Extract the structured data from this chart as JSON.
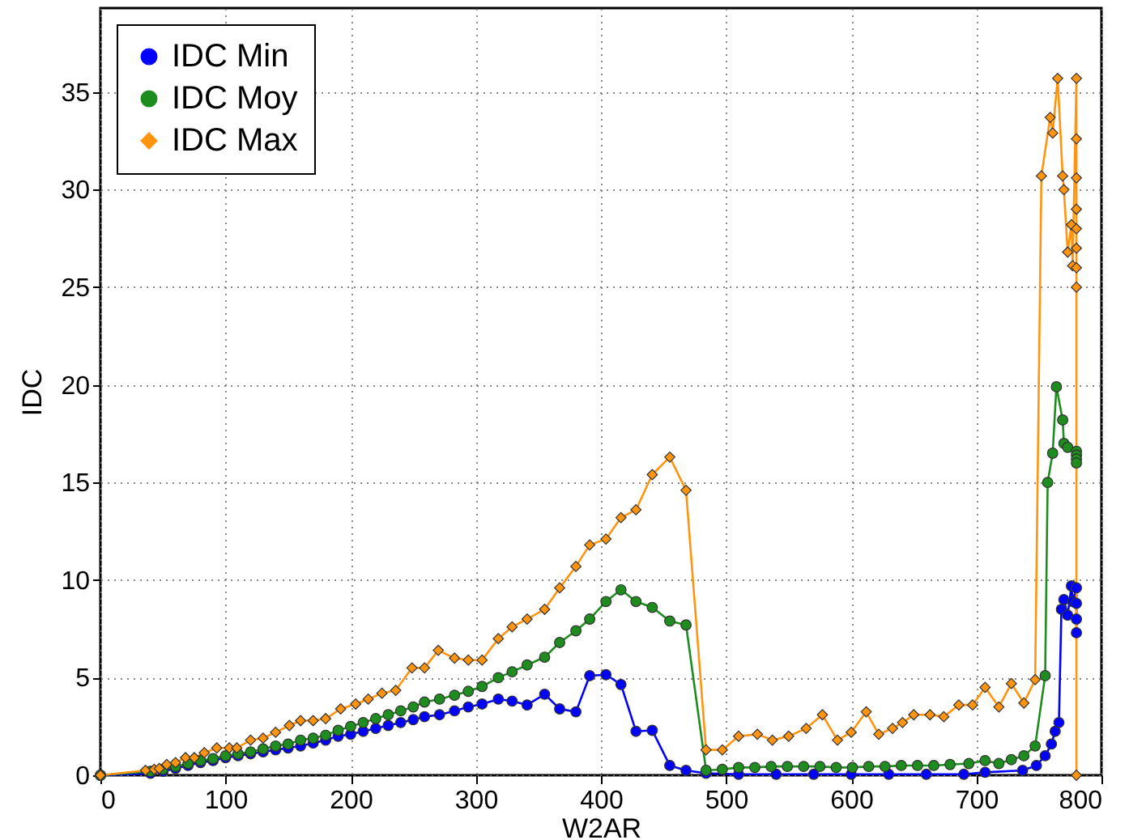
{
  "chart_data": {
    "type": "line",
    "xlabel": "W2AR",
    "ylabel": "IDC",
    "xlim": [
      0,
      800
    ],
    "xticks": [
      0,
      100,
      200,
      300,
      400,
      500,
      600,
      700,
      800
    ],
    "ylim": [
      0,
      39.3
    ],
    "yticks": [
      0,
      5,
      10,
      15,
      20,
      25,
      30,
      35
    ],
    "grid": true,
    "legend": "top left",
    "line_style": "solid",
    "series": [
      {
        "name": "IDC Min",
        "color": "#0000ff",
        "marker": "circle",
        "x": [
          0,
          40,
          50,
          60,
          70,
          80,
          90,
          100,
          110,
          120,
          130,
          140,
          150,
          160,
          170,
          180,
          190,
          200,
          210,
          220,
          230,
          240,
          250,
          259,
          271,
          283,
          294,
          305,
          318,
          329,
          341,
          355,
          367,
          380,
          391,
          404,
          416,
          428,
          441,
          455,
          468,
          484,
          510,
          540,
          570,
          600,
          630,
          660,
          690,
          707,
          737,
          748,
          755,
          760,
          763,
          766,
          768,
          770,
          773,
          776,
          777,
          780,
          780,
          780,
          780
        ],
        "values": [
          0,
          0.1,
          0.2,
          0.35,
          0.5,
          0.65,
          0.75,
          0.9,
          1.0,
          1.1,
          1.2,
          1.3,
          1.4,
          1.5,
          1.65,
          1.8,
          2.0,
          2.1,
          2.25,
          2.4,
          2.55,
          2.7,
          2.85,
          3.0,
          3.1,
          3.3,
          3.5,
          3.65,
          3.9,
          3.8,
          3.6,
          4.15,
          3.4,
          3.25,
          5.1,
          5.15,
          4.65,
          2.25,
          2.3,
          0.5,
          0.25,
          0.1,
          0.05,
          0.05,
          0.05,
          0.05,
          0.05,
          0.05,
          0.05,
          0.15,
          0.25,
          0.5,
          1.0,
          1.6,
          2.25,
          2.7,
          8.5,
          9.0,
          8.2,
          9.7,
          8.9,
          9.6,
          8.8,
          8.0,
          7.3
        ]
      },
      {
        "name": "IDC Moy",
        "color": "#1e8c1e",
        "marker": "circle",
        "x": [
          0,
          40,
          50,
          60,
          70,
          80,
          90,
          100,
          110,
          120,
          130,
          140,
          150,
          160,
          170,
          180,
          190,
          200,
          210,
          220,
          230,
          240,
          250,
          259,
          271,
          283,
          294,
          305,
          318,
          329,
          341,
          355,
          367,
          380,
          391,
          404,
          416,
          428,
          441,
          455,
          468,
          484,
          497,
          510,
          523,
          536,
          549,
          562,
          575,
          588,
          601,
          614,
          627,
          640,
          653,
          666,
          679,
          694,
          707,
          718,
          728,
          738,
          747,
          755,
          757,
          761,
          764,
          769,
          770,
          773,
          780,
          780,
          780,
          780
        ],
        "values": [
          0,
          0.2,
          0.3,
          0.45,
          0.6,
          0.75,
          0.85,
          1.0,
          1.1,
          1.2,
          1.35,
          1.5,
          1.6,
          1.8,
          1.9,
          2.05,
          2.3,
          2.5,
          2.7,
          2.9,
          3.1,
          3.3,
          3.5,
          3.75,
          3.9,
          4.1,
          4.3,
          4.55,
          5.0,
          5.3,
          5.65,
          6.05,
          6.8,
          7.4,
          8.0,
          8.9,
          9.5,
          8.9,
          8.6,
          7.9,
          7.7,
          0.25,
          0.3,
          0.4,
          0.4,
          0.45,
          0.45,
          0.45,
          0.45,
          0.4,
          0.4,
          0.45,
          0.45,
          0.5,
          0.5,
          0.5,
          0.55,
          0.6,
          0.75,
          0.6,
          0.8,
          1.0,
          1.5,
          5.1,
          15.0,
          16.5,
          19.9,
          18.2,
          17.0,
          16.8,
          16.6,
          16.4,
          16.2,
          16.0
        ]
      },
      {
        "name": "IDC Max",
        "color": "#ff9410",
        "marker": "diamond",
        "x": [
          0,
          36,
          43,
          47,
          53,
          60,
          68,
          75,
          83,
          93,
          103,
          109,
          120,
          130,
          140,
          151,
          160,
          170,
          180,
          192,
          204,
          214,
          225,
          236,
          249,
          259,
          270,
          283,
          294,
          305,
          318,
          329,
          341,
          355,
          367,
          380,
          391,
          404,
          416,
          428,
          441,
          455,
          468,
          484,
          497,
          510,
          525,
          537,
          550,
          564,
          577,
          589,
          600,
          612,
          622,
          633,
          641,
          650,
          663,
          674,
          686,
          697,
          707,
          718,
          728,
          738,
          747,
          752,
          759,
          761,
          765,
          769,
          770,
          773,
          776,
          777,
          780,
          780,
          780,
          780,
          780,
          780,
          780,
          780,
          780
        ],
        "values": [
          0,
          0.25,
          0.3,
          0.35,
          0.55,
          0.65,
          0.9,
          0.9,
          1.15,
          1.4,
          1.4,
          1.4,
          1.8,
          1.9,
          2.2,
          2.55,
          2.8,
          2.8,
          2.9,
          3.4,
          3.65,
          3.9,
          4.2,
          4.35,
          5.5,
          5.5,
          6.4,
          6.0,
          5.9,
          5.9,
          7.0,
          7.6,
          8.0,
          8.5,
          9.6,
          10.7,
          11.8,
          12.1,
          13.2,
          13.6,
          15.4,
          16.3,
          14.6,
          1.3,
          1.3,
          2.0,
          2.1,
          1.8,
          2.0,
          2.4,
          3.1,
          1.8,
          2.2,
          3.25,
          2.1,
          2.4,
          2.7,
          3.1,
          3.1,
          3.0,
          3.6,
          3.6,
          4.5,
          3.5,
          4.7,
          3.7,
          4.9,
          30.7,
          33.7,
          32.9,
          35.7,
          30.7,
          30.0,
          26.8,
          28.2,
          26.1,
          35.7,
          32.6,
          30.6,
          29,
          28,
          27,
          26,
          25,
          0
        ]
      }
    ]
  }
}
